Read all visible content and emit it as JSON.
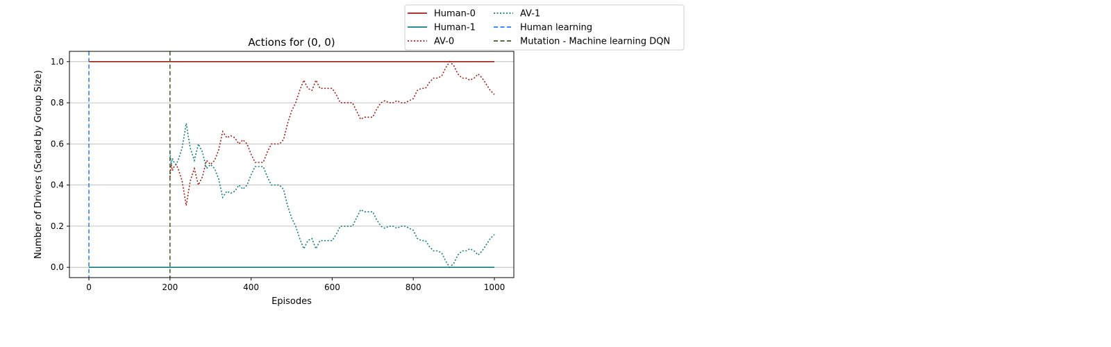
{
  "chart_data": {
    "type": "line",
    "title": "Actions for (0, 0)",
    "xlabel": "Episodes",
    "ylabel": "Number of Drivers (Scaled by Group Size)",
    "xlim": [
      -48,
      1048
    ],
    "ylim": [
      -0.05,
      1.05
    ],
    "xticks": [
      0,
      200,
      400,
      600,
      800,
      1000
    ],
    "yticks": [
      0.0,
      0.2,
      0.4,
      0.6,
      0.8,
      1.0
    ],
    "xtick_labels": [
      "0",
      "200",
      "400",
      "600",
      "800",
      "1000"
    ],
    "ytick_labels": [
      "0.0",
      "0.2",
      "0.4",
      "0.6",
      "0.8",
      "1.0"
    ],
    "grid": "horizontal",
    "legend_position": "above-right",
    "series": [
      {
        "name": "Human-0",
        "color": "#a11b12",
        "style": "solid",
        "x": [
          0,
          1000
        ],
        "y": [
          1.0,
          1.0
        ]
      },
      {
        "name": "Human-1",
        "color": "#0f7b7e",
        "style": "solid",
        "x": [
          0,
          1000
        ],
        "y": [
          0.0,
          0.0
        ]
      },
      {
        "name": "AV-0",
        "color": "#a11b12",
        "style": "dotted",
        "x": [
          200,
          203,
          206,
          210,
          215,
          220,
          230,
          240,
          250,
          260,
          270,
          280,
          290,
          300,
          310,
          320,
          330,
          340,
          350,
          360,
          370,
          380,
          390,
          400,
          410,
          420,
          430,
          440,
          450,
          460,
          470,
          480,
          490,
          500,
          510,
          520,
          530,
          540,
          550,
          560,
          570,
          580,
          590,
          600,
          610,
          620,
          630,
          640,
          650,
          660,
          670,
          680,
          690,
          700,
          710,
          720,
          730,
          740,
          750,
          760,
          770,
          780,
          790,
          800,
          810,
          820,
          830,
          840,
          850,
          860,
          870,
          880,
          890,
          900,
          910,
          920,
          930,
          940,
          950,
          960,
          970,
          980,
          990,
          1000
        ],
        "y": [
          0.44,
          0.5,
          0.47,
          0.49,
          0.5,
          0.48,
          0.42,
          0.3,
          0.42,
          0.48,
          0.4,
          0.44,
          0.52,
          0.5,
          0.52,
          0.57,
          0.66,
          0.63,
          0.64,
          0.63,
          0.6,
          0.62,
          0.6,
          0.55,
          0.51,
          0.51,
          0.51,
          0.56,
          0.6,
          0.6,
          0.6,
          0.62,
          0.7,
          0.76,
          0.8,
          0.86,
          0.91,
          0.87,
          0.86,
          0.91,
          0.87,
          0.87,
          0.87,
          0.87,
          0.84,
          0.8,
          0.8,
          0.8,
          0.8,
          0.76,
          0.72,
          0.73,
          0.73,
          0.73,
          0.77,
          0.8,
          0.81,
          0.8,
          0.8,
          0.81,
          0.8,
          0.8,
          0.81,
          0.82,
          0.86,
          0.87,
          0.87,
          0.9,
          0.92,
          0.92,
          0.93,
          0.97,
          1.0,
          0.98,
          0.94,
          0.92,
          0.92,
          0.91,
          0.92,
          0.94,
          0.92,
          0.89,
          0.86,
          0.84
        ]
      },
      {
        "name": "AV-1",
        "color": "#0f7b7e",
        "style": "dotted",
        "x": [
          200,
          203,
          206,
          210,
          215,
          220,
          230,
          240,
          250,
          260,
          270,
          280,
          290,
          300,
          310,
          320,
          330,
          340,
          350,
          360,
          370,
          380,
          390,
          400,
          410,
          420,
          430,
          440,
          450,
          460,
          470,
          480,
          490,
          500,
          510,
          520,
          530,
          540,
          550,
          560,
          570,
          580,
          590,
          600,
          610,
          620,
          630,
          640,
          650,
          660,
          670,
          680,
          690,
          700,
          710,
          720,
          730,
          740,
          750,
          760,
          770,
          780,
          790,
          800,
          810,
          820,
          830,
          840,
          850,
          860,
          870,
          880,
          890,
          900,
          910,
          920,
          930,
          940,
          950,
          960,
          970,
          980,
          990,
          1000
        ],
        "y": [
          0.56,
          0.5,
          0.53,
          0.51,
          0.5,
          0.52,
          0.58,
          0.7,
          0.58,
          0.52,
          0.6,
          0.56,
          0.48,
          0.5,
          0.48,
          0.43,
          0.34,
          0.37,
          0.36,
          0.37,
          0.4,
          0.38,
          0.4,
          0.45,
          0.49,
          0.49,
          0.49,
          0.44,
          0.4,
          0.4,
          0.4,
          0.38,
          0.3,
          0.24,
          0.2,
          0.14,
          0.09,
          0.13,
          0.14,
          0.09,
          0.13,
          0.13,
          0.13,
          0.13,
          0.16,
          0.2,
          0.2,
          0.2,
          0.2,
          0.24,
          0.28,
          0.27,
          0.27,
          0.27,
          0.23,
          0.2,
          0.19,
          0.2,
          0.2,
          0.19,
          0.2,
          0.2,
          0.19,
          0.18,
          0.14,
          0.13,
          0.13,
          0.1,
          0.08,
          0.08,
          0.07,
          0.03,
          0.0,
          0.02,
          0.06,
          0.08,
          0.08,
          0.09,
          0.08,
          0.06,
          0.08,
          0.11,
          0.14,
          0.16
        ]
      },
      {
        "name": "Human learning",
        "color": "#1f7cf0",
        "style": "dashed",
        "vline_x": 0
      },
      {
        "name": "Mutation - Machine learning DQN",
        "color": "#3b5a26",
        "style": "dashed",
        "vline_x": 200
      }
    ]
  }
}
